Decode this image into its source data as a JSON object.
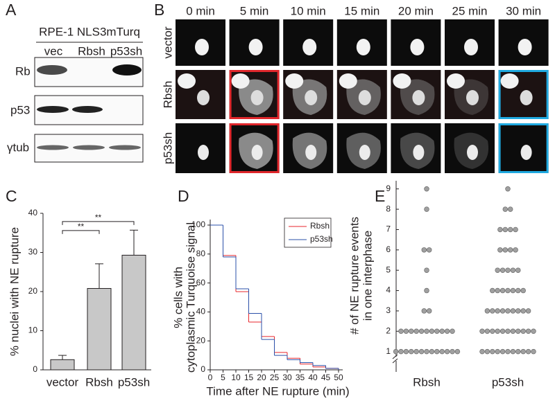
{
  "blot": {
    "panel": "A",
    "cell_line": "RPE-1 NLS3mTurq",
    "lanes": [
      "vec",
      "Rbsh",
      "p53sh"
    ],
    "rows": [
      "Rb",
      "p53",
      "γtub"
    ]
  },
  "timelapse": {
    "panel": "B",
    "times": [
      "0 min",
      "5 min",
      "10 min",
      "15 min",
      "20 min",
      "25 min",
      "30 min"
    ],
    "rows": [
      "vector",
      "Rbsh",
      "p53sh"
    ]
  },
  "chart_data": [
    {
      "type": "bar",
      "panel": "C",
      "ylabel": "% nuclei with NE rupture",
      "categories": [
        "vector",
        "Rbsh",
        "p53sh"
      ],
      "values": [
        2.6,
        20.8,
        29.3
      ],
      "errors": [
        1.1,
        6.3,
        6.4
      ],
      "color": "#c8c8c8",
      "ylim": [
        0,
        40
      ],
      "yticks": [
        0,
        10,
        20,
        30,
        40
      ],
      "annotations": [
        {
          "text": "**",
          "between": [
            "vector",
            "Rbsh"
          ],
          "y": 35.6
        },
        {
          "text": "**",
          "between": [
            "vector",
            "p53sh"
          ],
          "y": 37.9
        }
      ]
    },
    {
      "type": "line",
      "panel": "D",
      "xlabel": "Time after NE rupture (min)",
      "ylabel": [
        "% cells with",
        "cytoplasmic Turquoise signal"
      ],
      "x": [
        0,
        5,
        10,
        15,
        20,
        25,
        30,
        35,
        40,
        45
      ],
      "series": [
        {
          "name": "Rbsh",
          "color": "#e8262b",
          "values": [
            100,
            79,
            54,
            33,
            23,
            12,
            8,
            4,
            2,
            1
          ]
        },
        {
          "name": "p53sh",
          "color": "#2a4fa8",
          "values": [
            100,
            78,
            56,
            39,
            21,
            10,
            7,
            5,
            3,
            1
          ]
        }
      ],
      "xlim": [
        0,
        50
      ],
      "xticks": [
        0,
        5,
        10,
        15,
        20,
        25,
        30,
        35,
        40,
        45,
        50
      ],
      "ylim": [
        0,
        100
      ],
      "yticks": [
        0,
        20,
        40,
        60,
        80,
        100
      ],
      "legend": "upper right"
    },
    {
      "type": "strip",
      "panel": "E",
      "ylabel": [
        "# of NE rupture events",
        "in one interphase"
      ],
      "categories": [
        "Rbsh",
        "p53sh"
      ],
      "color": "#a0a0a0",
      "series": [
        {
          "values": [
            1,
            1,
            1,
            1,
            1,
            1,
            1,
            1,
            1,
            1,
            1,
            1,
            1,
            2,
            2,
            2,
            2,
            2,
            2,
            2,
            2,
            2,
            2,
            2,
            3,
            3,
            4,
            5,
            6,
            6,
            8,
            9
          ]
        },
        {
          "values": [
            1,
            1,
            1,
            1,
            1,
            1,
            1,
            1,
            1,
            1,
            1,
            2,
            2,
            2,
            2,
            2,
            2,
            2,
            2,
            2,
            2,
            2,
            3,
            3,
            3,
            3,
            3,
            3,
            3,
            3,
            3,
            4,
            4,
            4,
            4,
            4,
            4,
            4,
            5,
            5,
            5,
            5,
            5,
            6,
            6,
            6,
            6,
            7,
            7,
            7,
            7,
            8,
            8,
            9
          ]
        }
      ],
      "ylim": [
        0,
        9.4
      ],
      "yticks": [
        1,
        2,
        3,
        4,
        5,
        6,
        7,
        8,
        9
      ]
    }
  ]
}
